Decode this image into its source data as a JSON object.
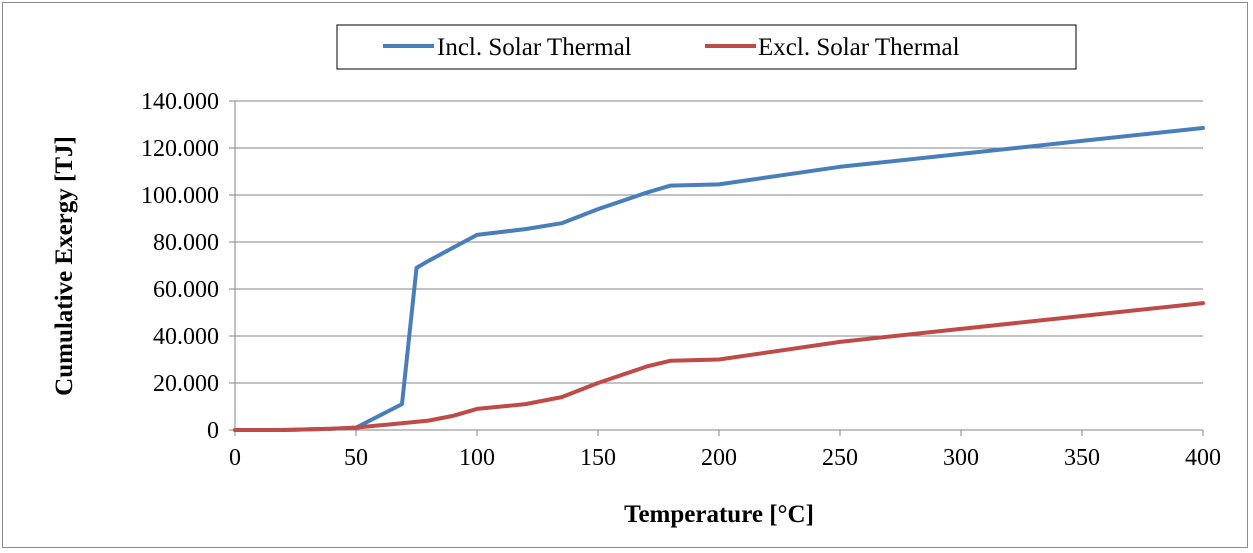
{
  "chart_data": {
    "type": "line",
    "title": "",
    "xlabel": "Temperature [°C]",
    "ylabel": "Cumulative Exergy [TJ]",
    "xlim": [
      0,
      400
    ],
    "ylim": [
      0,
      140
    ],
    "x_ticks": [
      0,
      50,
      100,
      150,
      200,
      250,
      300,
      350,
      400
    ],
    "x_tick_labels": [
      "0",
      "50",
      "100",
      "150",
      "200",
      "250",
      "300",
      "350",
      "400"
    ],
    "y_ticks": [
      0,
      20,
      40,
      60,
      80,
      100,
      120,
      140
    ],
    "y_tick_labels": [
      "0",
      "20.000",
      "40.000",
      "60.000",
      "80.000",
      "100.000",
      "120.000",
      "140.000"
    ],
    "grid": "horizontal",
    "legend_position": "top-center",
    "series": [
      {
        "name": "Incl. Solar Thermal",
        "color": "#4a7ebb",
        "x": [
          0,
          20,
          40,
          50,
          69,
          75,
          80,
          100,
          120,
          135,
          150,
          170,
          180,
          200,
          250,
          300,
          350,
          400
        ],
        "y": [
          0,
          0,
          0.5,
          1,
          11,
          69,
          72,
          83,
          85.5,
          88,
          94,
          101,
          104,
          104.5,
          112,
          117.5,
          123,
          128.5
        ]
      },
      {
        "name": "Excl. Solar Thermal",
        "color": "#be4b48",
        "x": [
          0,
          20,
          40,
          50,
          60,
          80,
          90,
          100,
          120,
          135,
          150,
          170,
          180,
          200,
          250,
          300,
          350,
          400
        ],
        "y": [
          0,
          0,
          0.5,
          1,
          2,
          4,
          6,
          9,
          11,
          14,
          20,
          27,
          29.5,
          30,
          37.5,
          43,
          48.5,
          54
        ]
      }
    ]
  }
}
